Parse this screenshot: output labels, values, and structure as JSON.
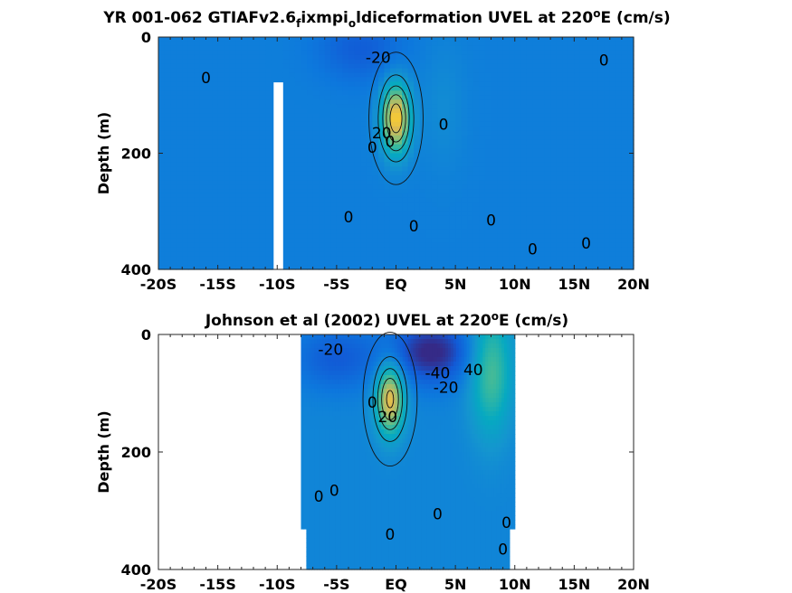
{
  "chart_data": [
    {
      "type": "heatmap",
      "title": {
        "pre": "YR 001-062 GTIAFv2.6",
        "sub1": "f",
        "mid": "ixmpi",
        "sub2": "o",
        "post": "ldiceformation UVEL at 220",
        "sup": "o",
        "end": "E (cm/s)"
      },
      "ylabel": "Depth (m)",
      "xlim": [
        -20,
        20
      ],
      "ylim": [
        0,
        400
      ],
      "xticks": [
        "-20S",
        "-15S",
        "-10S",
        "-5S",
        "EQ",
        "5N",
        "10N",
        "15N",
        "20N"
      ],
      "yticks": [
        "0",
        "200",
        "400"
      ],
      "colormap": "parula",
      "clim": [
        -40,
        100
      ],
      "contour_interval": 20,
      "field": {
        "background": -1,
        "features": [
          {
            "kind": "core",
            "x": 0,
            "depth": 140,
            "peak": 95
          },
          {
            "kind": "westward",
            "x": -3,
            "depth": 20,
            "peak": -20
          },
          {
            "kind": "eastward",
            "x": 4,
            "depth": 120,
            "peak": 8
          }
        ]
      },
      "contour_labels": [
        {
          "text": "-20",
          "x": -1.5,
          "depth": 35
        },
        {
          "text": "0",
          "x": -16,
          "depth": 70
        },
        {
          "text": "0",
          "x": 17.5,
          "depth": 40
        },
        {
          "text": "0",
          "x": 4,
          "depth": 150
        },
        {
          "text": "0",
          "x": -4,
          "depth": 310
        },
        {
          "text": "0",
          "x": 1.5,
          "depth": 325
        },
        {
          "text": "0",
          "x": 8,
          "depth": 315
        },
        {
          "text": "0",
          "x": 11.5,
          "depth": 365
        },
        {
          "text": "0",
          "x": 16,
          "depth": 355
        },
        {
          "text": "20",
          "x": -1.2,
          "depth": 165
        },
        {
          "text": "0",
          "x": -2,
          "depth": 190
        },
        {
          "text": "0",
          "x": -0.5,
          "depth": 180
        }
      ],
      "masked": [
        {
          "x": [
            -10.3,
            -9.5
          ],
          "depth": [
            78,
            400
          ]
        }
      ]
    },
    {
      "type": "heatmap",
      "title": {
        "pre": "Johnson et al (2002) UVEL at 220",
        "sup": "o",
        "end": "E (cm/s)"
      },
      "ylabel": "Depth (m)",
      "xlim": [
        -20,
        20
      ],
      "ylim": [
        0,
        400
      ],
      "xticks": [
        "-20S",
        "-15S",
        "-10S",
        "-5S",
        "EQ",
        "5N",
        "10N",
        "15N",
        "20N"
      ],
      "yticks": [
        "0",
        "200",
        "400"
      ],
      "colormap": "parula",
      "clim": [
        -40,
        100
      ],
      "contour_interval": 20,
      "data_extent": {
        "x": [
          -8,
          10
        ]
      },
      "field": {
        "background": 3,
        "features": [
          {
            "kind": "core",
            "x": -0.5,
            "depth": 110,
            "peak": 85
          },
          {
            "kind": "westward",
            "x": 3,
            "depth": 30,
            "peak": -45
          },
          {
            "kind": "westward",
            "x": -5,
            "depth": 40,
            "peak": -25
          },
          {
            "kind": "eastward",
            "x": 8,
            "depth": 60,
            "peak": 50
          }
        ]
      },
      "contour_labels": [
        {
          "text": "-20",
          "x": -5.5,
          "depth": 25
        },
        {
          "text": "-40",
          "x": 3.5,
          "depth": 65
        },
        {
          "text": "-20",
          "x": 4.2,
          "depth": 90
        },
        {
          "text": "40",
          "x": 6.5,
          "depth": 60
        },
        {
          "text": "0",
          "x": -2,
          "depth": 115
        },
        {
          "text": "20",
          "x": -0.7,
          "depth": 140
        },
        {
          "text": "0",
          "x": -6.5,
          "depth": 275
        },
        {
          "text": "0",
          "x": -5.2,
          "depth": 265
        },
        {
          "text": "0",
          "x": 3.5,
          "depth": 305
        },
        {
          "text": "0",
          "x": -0.5,
          "depth": 340
        },
        {
          "text": "0",
          "x": 9.3,
          "depth": 320
        },
        {
          "text": "0",
          "x": 9,
          "depth": 365
        }
      ]
    }
  ]
}
